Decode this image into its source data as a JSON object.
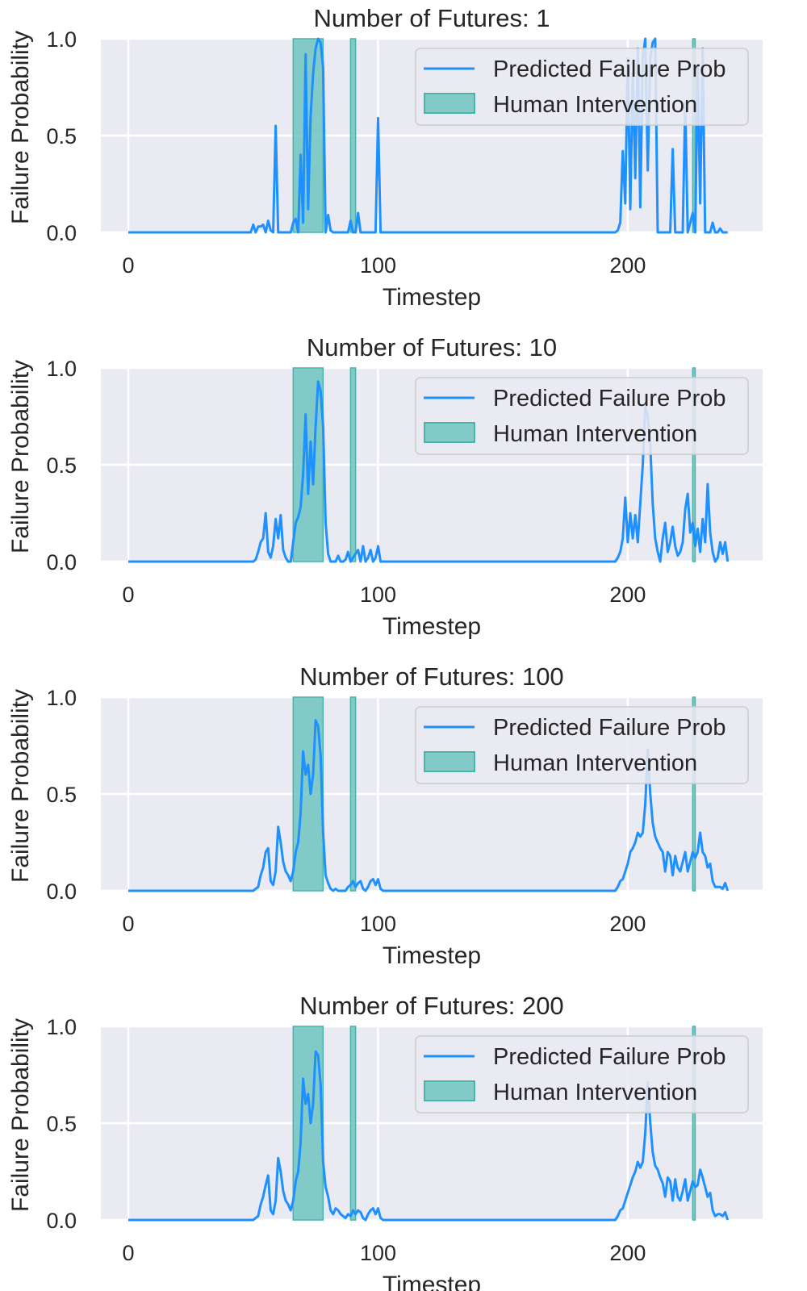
{
  "colors": {
    "line": "#1e90ff",
    "intervention_fill": "#66c2bb",
    "intervention_edge": "#4bb3aa",
    "axes_bg": "#eaeaf2",
    "grid": "#ffffff",
    "text": "#262626"
  },
  "chart_data": [
    {
      "type": "line",
      "title": "Number of Futures: 1",
      "xlabel": "Timestep",
      "ylabel": "Failure Probability",
      "xlim": [
        -11,
        254
      ],
      "ylim": [
        0,
        1
      ],
      "xticks": [
        "0",
        "100",
        "200"
      ],
      "yticks": [
        "0.0",
        "0.5",
        "1.0"
      ],
      "grid": true,
      "legend_position": "top-right",
      "legend": [
        "Predicted Failure Prob",
        "Human Intervention"
      ],
      "intervention_spans": [
        [
          66,
          78
        ],
        [
          89,
          91
        ],
        [
          226,
          227
        ]
      ],
      "series": [
        {
          "name": "Predicted Failure Prob",
          "x": [
            0,
            49,
            50,
            51,
            52,
            53,
            54,
            55,
            56,
            57,
            58,
            59,
            60,
            61,
            62,
            63,
            64,
            65,
            66,
            67,
            68,
            69,
            70,
            71,
            72,
            73,
            74,
            75,
            76,
            77,
            78,
            79,
            80,
            81,
            82,
            83,
            84,
            85,
            86,
            87,
            88,
            89,
            90,
            91,
            92,
            93,
            94,
            95,
            96,
            97,
            98,
            99,
            100,
            101,
            102,
            195,
            196,
            197,
            198,
            199,
            200,
            201,
            202,
            203,
            204,
            205,
            206,
            207,
            208,
            209,
            210,
            211,
            212,
            213,
            214,
            215,
            216,
            217,
            218,
            219,
            220,
            221,
            222,
            223,
            224,
            225,
            226,
            227,
            228,
            229,
            230,
            231,
            232,
            233,
            234,
            235,
            236,
            237,
            238,
            240
          ],
          "y": [
            0,
            0,
            0.04,
            0,
            0.03,
            0.03,
            0.04,
            0,
            0.06,
            0.01,
            0,
            0.55,
            0,
            0,
            0,
            0,
            0,
            0,
            0.05,
            0.07,
            0,
            0.4,
            0.05,
            0.92,
            0.12,
            0.6,
            0.82,
            0.95,
            1.0,
            0.98,
            0.85,
            0,
            0.09,
            0.01,
            0,
            0,
            0,
            0,
            0,
            0,
            0,
            0.06,
            0,
            0,
            0.1,
            0,
            0,
            0,
            0,
            0,
            0,
            0,
            0.59,
            0,
            0,
            0,
            0.01,
            0.05,
            0.42,
            0.15,
            0.9,
            0.12,
            0.82,
            0.28,
            0.95,
            0.13,
            0.9,
            1.0,
            0.32,
            0.9,
            0.98,
            1.0,
            0,
            0,
            0,
            0,
            0,
            0,
            0.43,
            0,
            0,
            0,
            0,
            0.67,
            0,
            0.05,
            0.1,
            0,
            0.85,
            0.15,
            0.95,
            0,
            0,
            0,
            0.05,
            0,
            0,
            0.02,
            0,
            0
          ],
          "color": "#1e90ff"
        }
      ]
    },
    {
      "type": "line",
      "title": "Number of Futures: 10",
      "xlabel": "Timestep",
      "ylabel": "Failure Probability",
      "xlim": [
        -11,
        254
      ],
      "ylim": [
        0,
        1
      ],
      "xticks": [
        "0",
        "100",
        "200"
      ],
      "yticks": [
        "0.0",
        "0.5",
        "1.0"
      ],
      "grid": true,
      "legend_position": "top-right",
      "legend": [
        "Predicted Failure Prob",
        "Human Intervention"
      ],
      "intervention_spans": [
        [
          66,
          78
        ],
        [
          89,
          91
        ],
        [
          226,
          227
        ]
      ],
      "series": [
        {
          "name": "Predicted Failure Prob",
          "x": [
            0,
            50,
            51,
            52,
            53,
            54,
            55,
            56,
            57,
            58,
            59,
            60,
            61,
            62,
            63,
            64,
            65,
            66,
            67,
            68,
            69,
            70,
            71,
            72,
            73,
            74,
            75,
            76,
            77,
            78,
            79,
            80,
            81,
            82,
            83,
            84,
            85,
            86,
            87,
            88,
            89,
            90,
            91,
            92,
            93,
            94,
            95,
            96,
            97,
            98,
            99,
            100,
            101,
            102,
            195,
            196,
            197,
            198,
            199,
            200,
            201,
            202,
            203,
            204,
            205,
            206,
            207,
            208,
            209,
            210,
            211,
            212,
            213,
            214,
            215,
            216,
            217,
            218,
            219,
            220,
            221,
            222,
            223,
            224,
            225,
            226,
            227,
            228,
            229,
            230,
            231,
            232,
            233,
            234,
            235,
            236,
            237,
            238,
            239,
            240
          ],
          "y": [
            0,
            0,
            0.01,
            0.05,
            0.1,
            0.12,
            0.25,
            0.05,
            0.02,
            0.08,
            0.22,
            0.12,
            0.24,
            0.06,
            0.02,
            0,
            0,
            0.1,
            0.2,
            0.23,
            0.28,
            0.45,
            0.76,
            0.35,
            0.62,
            0.4,
            0.7,
            0.93,
            0.88,
            0.7,
            0.2,
            0.04,
            0,
            0,
            0,
            0.03,
            0,
            0,
            0.01,
            0.05,
            0,
            0.02,
            0.04,
            0.06,
            0,
            0.08,
            0,
            0.02,
            0.06,
            0,
            0.02,
            0.08,
            0,
            0,
            0,
            0.02,
            0.05,
            0.12,
            0.33,
            0.1,
            0.25,
            0.12,
            0.24,
            0.1,
            0.3,
            0.5,
            0.8,
            0.75,
            0.6,
            0.3,
            0.12,
            0.05,
            0,
            0.12,
            0.2,
            0.05,
            0.1,
            0.18,
            0.08,
            0.03,
            0.05,
            0.1,
            0.27,
            0.35,
            0.15,
            0.2,
            0.08,
            0.17,
            0.05,
            0.22,
            0.1,
            0.4,
            0.15,
            0.05,
            0,
            0.02,
            0.1,
            0.04,
            0.1,
            0
          ],
          "color": "#1e90ff"
        }
      ]
    },
    {
      "type": "line",
      "title": "Number of Futures: 100",
      "xlabel": "Timestep",
      "ylabel": "Failure Probability",
      "xlim": [
        -11,
        254
      ],
      "ylim": [
        0,
        1
      ],
      "xticks": [
        "0",
        "100",
        "200"
      ],
      "yticks": [
        "0.0",
        "0.5",
        "1.0"
      ],
      "grid": true,
      "legend_position": "top-right",
      "legend": [
        "Predicted Failure Prob",
        "Human Intervention"
      ],
      "intervention_spans": [
        [
          66,
          78
        ],
        [
          89,
          91
        ],
        [
          226,
          227
        ]
      ],
      "series": [
        {
          "name": "Predicted Failure Prob",
          "x": [
            0,
            50,
            51,
            52,
            53,
            54,
            55,
            56,
            57,
            58,
            59,
            60,
            61,
            62,
            63,
            64,
            65,
            66,
            67,
            68,
            69,
            70,
            71,
            72,
            73,
            74,
            75,
            76,
            77,
            78,
            79,
            80,
            81,
            82,
            83,
            84,
            85,
            86,
            87,
            88,
            89,
            90,
            91,
            92,
            93,
            94,
            95,
            96,
            97,
            98,
            99,
            100,
            101,
            102,
            194,
            195,
            196,
            197,
            198,
            199,
            200,
            201,
            202,
            203,
            204,
            205,
            206,
            207,
            208,
            209,
            210,
            211,
            212,
            213,
            214,
            215,
            216,
            217,
            218,
            219,
            220,
            221,
            222,
            223,
            224,
            225,
            226,
            227,
            228,
            229,
            230,
            231,
            232,
            233,
            234,
            235,
            236,
            237,
            238,
            239,
            240
          ],
          "y": [
            0,
            0,
            0.01,
            0.02,
            0.08,
            0.12,
            0.2,
            0.22,
            0.05,
            0.03,
            0.1,
            0.33,
            0.25,
            0.15,
            0.1,
            0.08,
            0.05,
            0.1,
            0.2,
            0.25,
            0.4,
            0.72,
            0.6,
            0.65,
            0.5,
            0.6,
            0.88,
            0.85,
            0.7,
            0.3,
            0.08,
            0.04,
            0.01,
            0,
            0.01,
            0,
            0,
            0,
            0,
            0.02,
            0.03,
            0.05,
            0.02,
            0.04,
            0.05,
            0.01,
            0,
            0.02,
            0.05,
            0.06,
            0.03,
            0.06,
            0.01,
            0,
            0,
            0,
            0.02,
            0.05,
            0.06,
            0.1,
            0.14,
            0.2,
            0.22,
            0.25,
            0.3,
            0.28,
            0.3,
            0.45,
            0.73,
            0.5,
            0.35,
            0.28,
            0.25,
            0.22,
            0.2,
            0.1,
            0.2,
            0.18,
            0.08,
            0.18,
            0.12,
            0.1,
            0.15,
            0.2,
            0.1,
            0.15,
            0.2,
            0.17,
            0.2,
            0.3,
            0.2,
            0.18,
            0.12,
            0.14,
            0.05,
            0.02,
            0.02,
            0.02,
            0.01,
            0.04,
            0
          ],
          "color": "#1e90ff"
        }
      ]
    },
    {
      "type": "line",
      "title": "Number of Futures: 200",
      "xlabel": "Timestep",
      "ylabel": "Failure Probability",
      "xlim": [
        -11,
        254
      ],
      "ylim": [
        0,
        1
      ],
      "xticks": [
        "0",
        "100",
        "200"
      ],
      "yticks": [
        "0.0",
        "0.5",
        "1.0"
      ],
      "grid": true,
      "legend_position": "top-right",
      "legend": [
        "Predicted Failure Prob",
        "Human Intervention"
      ],
      "intervention_spans": [
        [
          66,
          78
        ],
        [
          89,
          91
        ],
        [
          226,
          227
        ]
      ],
      "series": [
        {
          "name": "Predicted Failure Prob",
          "x": [
            0,
            50,
            51,
            52,
            53,
            54,
            55,
            56,
            57,
            58,
            59,
            60,
            61,
            62,
            63,
            64,
            65,
            66,
            67,
            68,
            69,
            70,
            71,
            72,
            73,
            74,
            75,
            76,
            77,
            78,
            79,
            80,
            81,
            82,
            83,
            84,
            85,
            86,
            87,
            88,
            89,
            90,
            91,
            92,
            93,
            94,
            95,
            96,
            97,
            98,
            99,
            100,
            101,
            102,
            194,
            195,
            196,
            197,
            198,
            199,
            200,
            201,
            202,
            203,
            204,
            205,
            206,
            207,
            208,
            209,
            210,
            211,
            212,
            213,
            214,
            215,
            216,
            217,
            218,
            219,
            220,
            221,
            222,
            223,
            224,
            225,
            226,
            227,
            228,
            229,
            230,
            231,
            232,
            233,
            234,
            235,
            236,
            237,
            238,
            239,
            240
          ],
          "y": [
            0,
            0,
            0.01,
            0.02,
            0.08,
            0.12,
            0.18,
            0.23,
            0.05,
            0.03,
            0.1,
            0.32,
            0.25,
            0.15,
            0.1,
            0.08,
            0.05,
            0.1,
            0.2,
            0.25,
            0.4,
            0.73,
            0.6,
            0.65,
            0.5,
            0.6,
            0.87,
            0.85,
            0.7,
            0.3,
            0.17,
            0.12,
            0.05,
            0.03,
            0.06,
            0.05,
            0.03,
            0.02,
            0.01,
            0.03,
            0.02,
            0.05,
            0.03,
            0.05,
            0.04,
            0.01,
            0,
            0.03,
            0.05,
            0.06,
            0.03,
            0.06,
            0.01,
            0,
            0,
            0,
            0.02,
            0.05,
            0.06,
            0.1,
            0.14,
            0.18,
            0.22,
            0.25,
            0.3,
            0.27,
            0.3,
            0.45,
            0.71,
            0.5,
            0.35,
            0.28,
            0.26,
            0.22,
            0.19,
            0.12,
            0.22,
            0.2,
            0.1,
            0.21,
            0.12,
            0.1,
            0.15,
            0.21,
            0.1,
            0.15,
            0.2,
            0.17,
            0.18,
            0.26,
            0.22,
            0.17,
            0.12,
            0.14,
            0.05,
            0.02,
            0.03,
            0.03,
            0.02,
            0.04,
            0
          ],
          "color": "#1e90ff"
        }
      ]
    }
  ]
}
